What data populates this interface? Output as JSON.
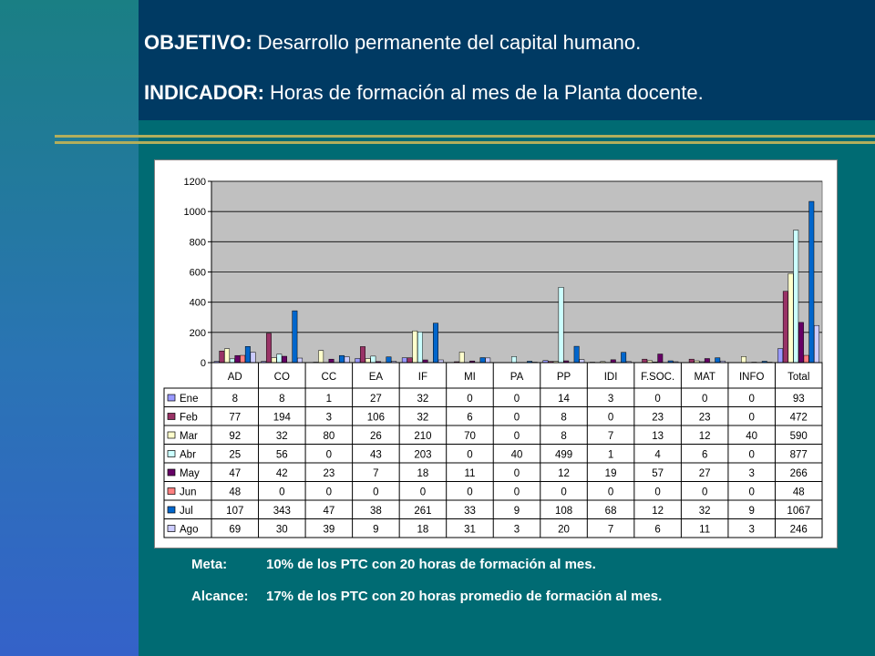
{
  "slide": {
    "objective_label": "OBJETIVO:",
    "objective_text": "Desarrollo permanente del capital humano.",
    "indicator_label": "INDICADOR:",
    "indicator_text": "Horas de formación al mes de la Planta docente.",
    "meta_label": "Meta:",
    "meta_text": "10% de los PTC con 20 horas de formación al mes.",
    "alcance_label": "Alcance:",
    "alcance_text": "17% de los PTC con 20 horas promedio de formación al mes."
  },
  "colors": {
    "background": "#006b73",
    "top_band": "#003a63",
    "rule": "#b2ae5c",
    "plot_area": "#c0c0c0"
  },
  "chart_data": {
    "type": "bar",
    "title": "",
    "xlabel": "",
    "ylabel": "",
    "ylim": [
      0,
      1200
    ],
    "yticks": [
      0,
      200,
      400,
      600,
      800,
      1000,
      1200
    ],
    "grid": true,
    "legend": "data-table-left",
    "categories": [
      "AD",
      "CO",
      "CC",
      "EA",
      "IF",
      "MI",
      "PA",
      "PP",
      "IDI",
      "F.SOC.",
      "MAT",
      "INFO",
      "Total"
    ],
    "series": [
      {
        "name": "Ene",
        "color": "#9999ff",
        "values": [
          8,
          8,
          1,
          27,
          32,
          0,
          0,
          14,
          3,
          0,
          0,
          0,
          93
        ]
      },
      {
        "name": "Feb",
        "color": "#993366",
        "values": [
          77,
          194,
          3,
          106,
          32,
          6,
          0,
          8,
          0,
          23,
          23,
          0,
          472
        ]
      },
      {
        "name": "Mar",
        "color": "#ffffcc",
        "values": [
          92,
          32,
          80,
          26,
          210,
          70,
          0,
          8,
          7,
          13,
          12,
          40,
          590
        ]
      },
      {
        "name": "Abr",
        "color": "#ccffff",
        "values": [
          25,
          56,
          0,
          43,
          203,
          0,
          40,
          499,
          1,
          4,
          6,
          0,
          877
        ]
      },
      {
        "name": "May",
        "color": "#660066",
        "values": [
          47,
          42,
          23,
          7,
          18,
          11,
          0,
          12,
          19,
          57,
          27,
          3,
          266
        ]
      },
      {
        "name": "Jun",
        "color": "#ff8080",
        "values": [
          48,
          0,
          0,
          0,
          0,
          0,
          0,
          0,
          0,
          0,
          0,
          0,
          48
        ]
      },
      {
        "name": "Jul",
        "color": "#0066cc",
        "values": [
          107,
          343,
          47,
          38,
          261,
          33,
          9,
          108,
          68,
          12,
          32,
          9,
          1067
        ]
      },
      {
        "name": "Ago",
        "color": "#ccccff",
        "values": [
          69,
          30,
          39,
          9,
          18,
          31,
          3,
          20,
          7,
          6,
          11,
          3,
          246
        ]
      }
    ]
  }
}
